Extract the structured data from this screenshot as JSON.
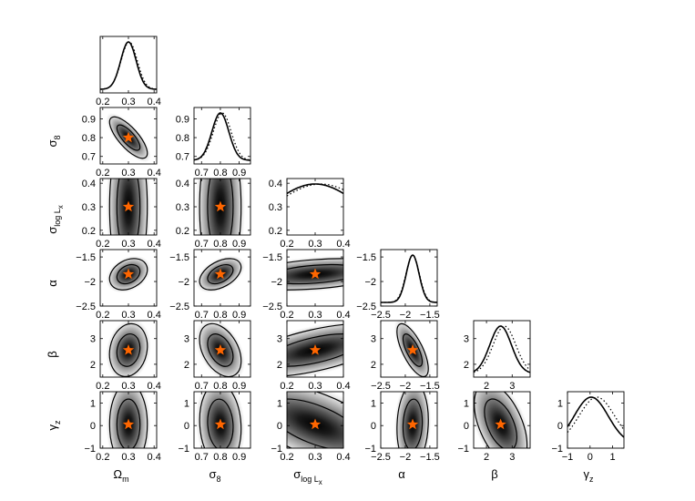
{
  "chart_data": {
    "type": "corner",
    "parameters": [
      {
        "key": "Om",
        "label": "Ω",
        "sub": "m",
        "range": [
          0.19,
          0.41
        ],
        "ticks": [
          0.2,
          0.3,
          0.4
        ],
        "tick_labels": [
          "0.2",
          "0.3",
          "0.4"
        ],
        "truth": 0.3,
        "post_std": 0.03
      },
      {
        "key": "s8",
        "label": "σ",
        "sub": "8",
        "range": [
          0.66,
          0.96
        ],
        "ticks": [
          0.7,
          0.8,
          0.9
        ],
        "tick_labels": [
          "0.7",
          "0.8",
          "0.9"
        ],
        "truth": 0.8,
        "post_std": 0.045
      },
      {
        "key": "slogLx",
        "label": "σ",
        "sub": "log L",
        "sub2": "x",
        "range": [
          0.2,
          0.4
        ],
        "ticks": [
          0.2,
          0.3,
          0.4
        ],
        "tick_labels": [
          "0.2",
          "0.3",
          "0.4"
        ],
        "truth": 0.3,
        "post_std": 0.15
      },
      {
        "key": "alpha",
        "label": "α",
        "sub": "",
        "range": [
          -2.5,
          -1.35
        ],
        "ticks": [
          -2.5,
          -2,
          -1.5
        ],
        "tick_labels": [
          "−2.5",
          "−2",
          "−1.5"
        ],
        "truth": -1.85,
        "post_std": 0.13
      },
      {
        "key": "beta",
        "label": "β",
        "sub": "",
        "range": [
          1.5,
          3.7
        ],
        "ticks": [
          2,
          3
        ],
        "tick_labels": [
          "2",
          "3"
        ],
        "truth": 2.55,
        "post_std": 0.42
      },
      {
        "key": "gammaz",
        "label": "γ",
        "sub": "z",
        "range": [
          -1,
          1.5
        ],
        "ticks": [
          -1,
          0,
          1
        ],
        "tick_labels": [
          "−1",
          "0",
          "1"
        ],
        "truth": 0.05,
        "post_std": 0.75
      }
    ],
    "y_axis_overrides": {
      "s8": {
        "range": [
          0.66,
          0.96
        ],
        "ticks": [
          0.7,
          0.8,
          0.9
        ],
        "tick_labels": [
          "0.7",
          "0.8",
          "0.9"
        ]
      },
      "slogLx": {
        "range": [
          0.18,
          0.42
        ],
        "ticks": [
          0.2,
          0.3,
          0.4
        ],
        "tick_labels": [
          "0.2",
          "0.3",
          "0.4"
        ]
      },
      "alpha": {
        "range": [
          -2.5,
          -1.35
        ],
        "ticks": [
          -2.5,
          -2,
          -1.5
        ],
        "tick_labels": [
          "−2.5",
          "−2",
          "−1.5"
        ]
      },
      "beta": {
        "range": [
          1.5,
          3.7
        ],
        "ticks": [
          2,
          3
        ],
        "tick_labels": [
          "2",
          "3"
        ]
      },
      "gammaz": {
        "range": [
          -1,
          1.5
        ],
        "ticks": [
          -1,
          0,
          1
        ],
        "tick_labels": [
          "−1",
          "0",
          "1"
        ]
      }
    },
    "correlations": {
      "s8|Om": -0.75,
      "slogLx|Om": 0.0,
      "slogLx|s8": 0.0,
      "alpha|Om": 0.3,
      "alpha|s8": 0.45,
      "alpha|slogLx": 0.35,
      "beta|Om": 0.15,
      "beta|s8": -0.4,
      "beta|slogLx": 0.6,
      "beta|alpha": -0.7,
      "gammaz|Om": 0.0,
      "gammaz|s8": -0.1,
      "gammaz|slogLx": -0.6,
      "gammaz|alpha": 0.1,
      "gammaz|beta": -0.5
    },
    "marginal_prior_offsets": {
      "Om": 0.003,
      "s8": 0.01,
      "slogLx": 0.02,
      "alpha": 0.0,
      "beta": 0.15,
      "gammaz": 0.25
    },
    "marker": {
      "shape": "star",
      "color": "#ff6600",
      "meaning": "fiducial values"
    },
    "contour_levels": [
      "68%",
      "95%"
    ],
    "density_colormap": "grayscale",
    "lines": {
      "posterior": "solid",
      "comparison": "dotted"
    },
    "title": ""
  },
  "colors": {
    "star": "#ff6600",
    "ink": "#000000",
    "background": "#ffffff"
  }
}
